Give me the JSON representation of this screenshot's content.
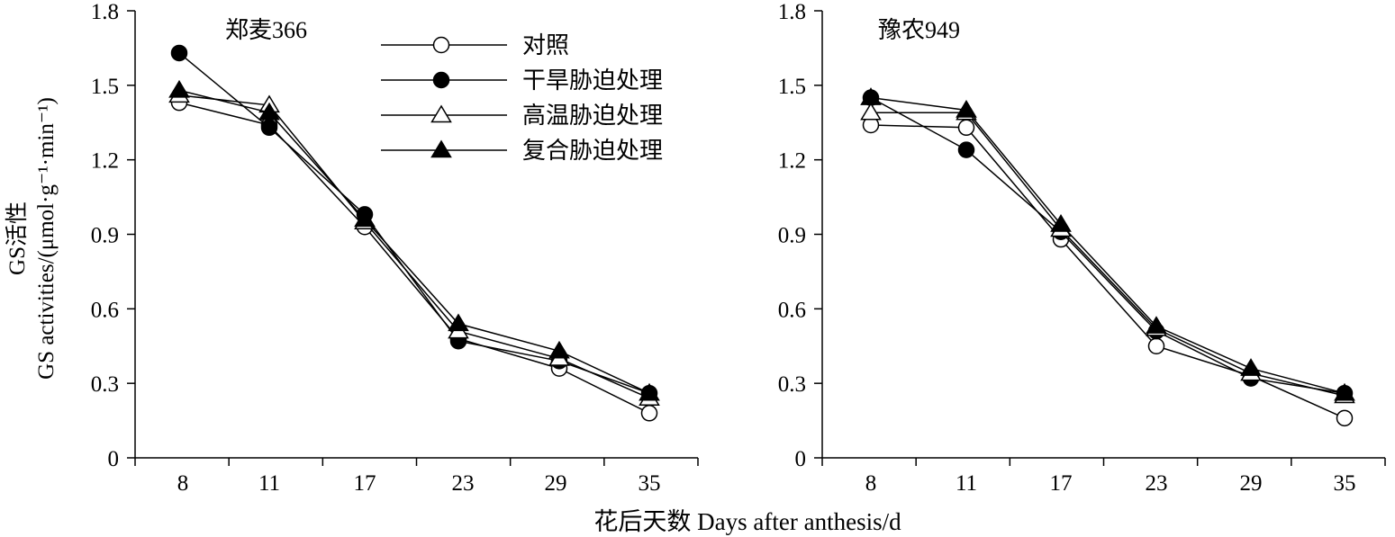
{
  "figure": {
    "xlabel": "花后天数 Days after anthesis/d",
    "ylabel_cn": "GS活性",
    "ylabel_en": "GS activities/(μmol·g⁻¹·min⁻¹)"
  },
  "legend": {
    "items": [
      {
        "label": "对照",
        "marker": "open-circle"
      },
      {
        "label": "干旱胁迫处理",
        "marker": "filled-circle"
      },
      {
        "label": "高温胁迫处理",
        "marker": "open-triangle"
      },
      {
        "label": "复合胁迫处理",
        "marker": "filled-triangle"
      }
    ]
  },
  "chart_data": [
    {
      "type": "line",
      "title": "郑麦366",
      "categories": [
        "8",
        "11",
        "17",
        "23",
        "29",
        "35"
      ],
      "ylim": [
        0,
        1.8
      ],
      "yticks": [
        "0",
        "0.3",
        "0.6",
        "0.9",
        "1.2",
        "1.5",
        "1.8"
      ],
      "grid": false,
      "legend_position": "top-right",
      "series": [
        {
          "name": "对照",
          "marker": "open-circle",
          "values": [
            1.43,
            1.34,
            0.93,
            0.48,
            0.36,
            0.18
          ]
        },
        {
          "name": "干旱胁迫处理",
          "marker": "filled-circle",
          "values": [
            1.63,
            1.33,
            0.98,
            0.47,
            0.39,
            0.26
          ]
        },
        {
          "name": "高温胁迫处理",
          "marker": "open-triangle",
          "values": [
            1.46,
            1.42,
            0.95,
            0.51,
            0.4,
            0.24
          ]
        },
        {
          "name": "复合胁迫处理",
          "marker": "filled-triangle",
          "values": [
            1.48,
            1.39,
            0.96,
            0.54,
            0.43,
            0.26
          ]
        }
      ]
    },
    {
      "type": "line",
      "title": "豫农949",
      "categories": [
        "8",
        "11",
        "17",
        "23",
        "29",
        "35"
      ],
      "ylim": [
        0,
        1.8
      ],
      "yticks": [
        "0",
        "0.3",
        "0.6",
        "0.9",
        "1.2",
        "1.5",
        "1.8"
      ],
      "grid": false,
      "series": [
        {
          "name": "对照",
          "marker": "open-circle",
          "values": [
            1.34,
            1.33,
            0.88,
            0.45,
            0.33,
            0.16
          ]
        },
        {
          "name": "干旱胁迫处理",
          "marker": "filled-circle",
          "values": [
            1.45,
            1.24,
            0.91,
            0.51,
            0.32,
            0.26
          ]
        },
        {
          "name": "高温胁迫处理",
          "marker": "open-triangle",
          "values": [
            1.39,
            1.39,
            0.92,
            0.52,
            0.34,
            0.25
          ]
        },
        {
          "name": "复合胁迫处理",
          "marker": "filled-triangle",
          "values": [
            1.45,
            1.4,
            0.94,
            0.53,
            0.36,
            0.26
          ]
        }
      ]
    }
  ]
}
